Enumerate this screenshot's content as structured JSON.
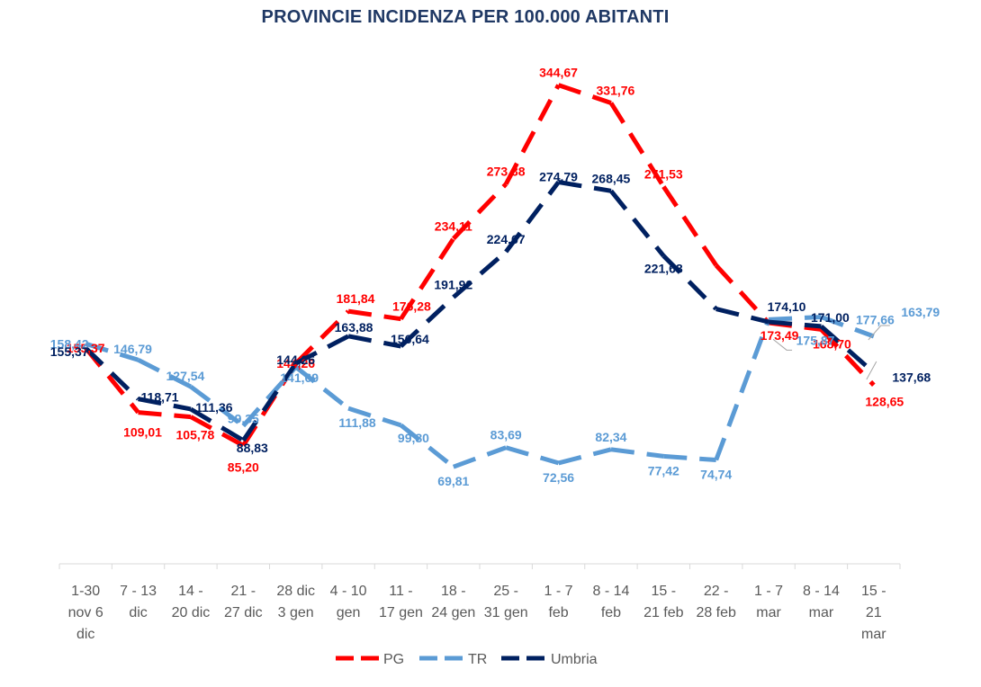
{
  "chart_data": {
    "type": "line",
    "title": "PROVINCIE INCIDENZA PER 100.000 ABITANTI",
    "xlabel": "",
    "ylabel": "",
    "ylim": [
      0,
      380
    ],
    "grid": false,
    "legend": "bottom",
    "categories": [
      [
        "1-30",
        "nov 6",
        "dic"
      ],
      [
        "7 - 13",
        "dic"
      ],
      [
        "14 -",
        "20 dic"
      ],
      [
        "21 -",
        "27 dic"
      ],
      [
        "28 dic",
        "3 gen"
      ],
      [
        "4 - 10",
        "gen"
      ],
      [
        "11 -",
        "17 gen"
      ],
      [
        "18 -",
        "24 gen"
      ],
      [
        "25 -",
        "31 gen"
      ],
      [
        "1 - 7",
        "feb"
      ],
      [
        "8 - 14",
        "feb"
      ],
      [
        "15 -",
        "21 feb"
      ],
      [
        "22 -",
        "28 feb"
      ],
      [
        "1 - 7",
        "mar"
      ],
      [
        "8 - 14",
        "mar"
      ],
      [
        "15 -",
        "21",
        "mar"
      ]
    ],
    "series": [
      {
        "name": "PG",
        "color": "#ff0000",
        "values": [
          155.37,
          109.01,
          105.78,
          85.2,
          144.26,
          181.84,
          176.28,
          234.11,
          273.38,
          344.67,
          331.76,
          271.53,
          214.9,
          173.49,
          168.7,
          128.65
        ],
        "labels": [
          "155,37",
          "109,01",
          "105,78",
          "85,20",
          "144,26",
          "181,84",
          "176,28",
          "234,11",
          "273,38",
          "344,67",
          "331,76",
          "271,53",
          "",
          "173,49",
          "168,70",
          "128,65"
        ]
      },
      {
        "name": "TR",
        "color": "#5b9bd5",
        "values": [
          158.42,
          146.79,
          127.54,
          99.35,
          141.69,
          111.88,
          99.8,
          69.81,
          83.69,
          72.56,
          82.34,
          77.42,
          74.74,
          175.87,
          177.66,
          163.79
        ],
        "labels": [
          "158,42",
          "146,79",
          "127,54",
          "99,35",
          "141,69",
          "111,88",
          "99,80",
          "69,81",
          "83,69",
          "72,56",
          "82,34",
          "77,42",
          "74,74",
          "175,87",
          "177,66",
          "163,79"
        ]
      },
      {
        "name": "Umbria",
        "color": "#002060",
        "values": [
          155.37,
          118.71,
          111.36,
          88.83,
          144.26,
          163.88,
          156.64,
          191.92,
          224.67,
          274.79,
          268.45,
          221.68,
          183.5,
          174.1,
          171.0,
          137.68
        ],
        "labels": [
          "155,37",
          "118,71",
          "111,36",
          "88,83",
          "144,26",
          "163,88",
          "156,64",
          "191,92",
          "224,67",
          "274,79",
          "268,45",
          "221,68",
          "",
          "174,10",
          "171,00",
          "137,68"
        ]
      }
    ]
  }
}
